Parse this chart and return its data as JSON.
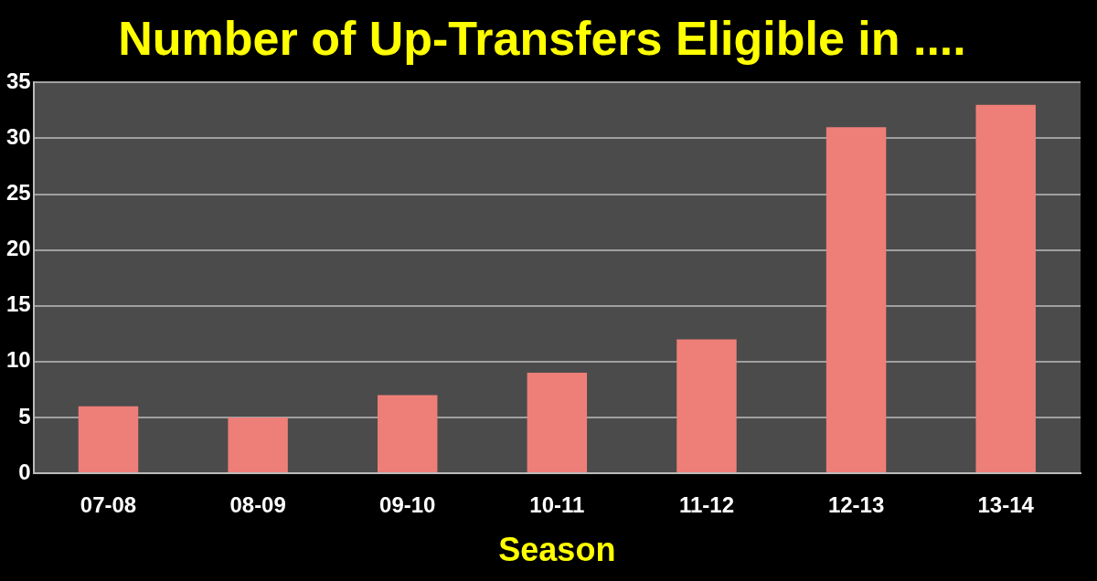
{
  "chart_data": {
    "type": "bar",
    "title": "Number of Up-Transfers Eligible in ....",
    "xlabel": "Season",
    "categories": [
      "07-08",
      "08-09",
      "09-10",
      "10-11",
      "11-12",
      "12-13",
      "13-14"
    ],
    "values": [
      6,
      5,
      7,
      9,
      12,
      31,
      33
    ],
    "color": "#ee7f78",
    "ylim": [
      0,
      35
    ],
    "yticks": [
      0,
      5,
      10,
      15,
      20,
      25,
      30,
      35
    ],
    "grid": "y",
    "legend": false
  }
}
